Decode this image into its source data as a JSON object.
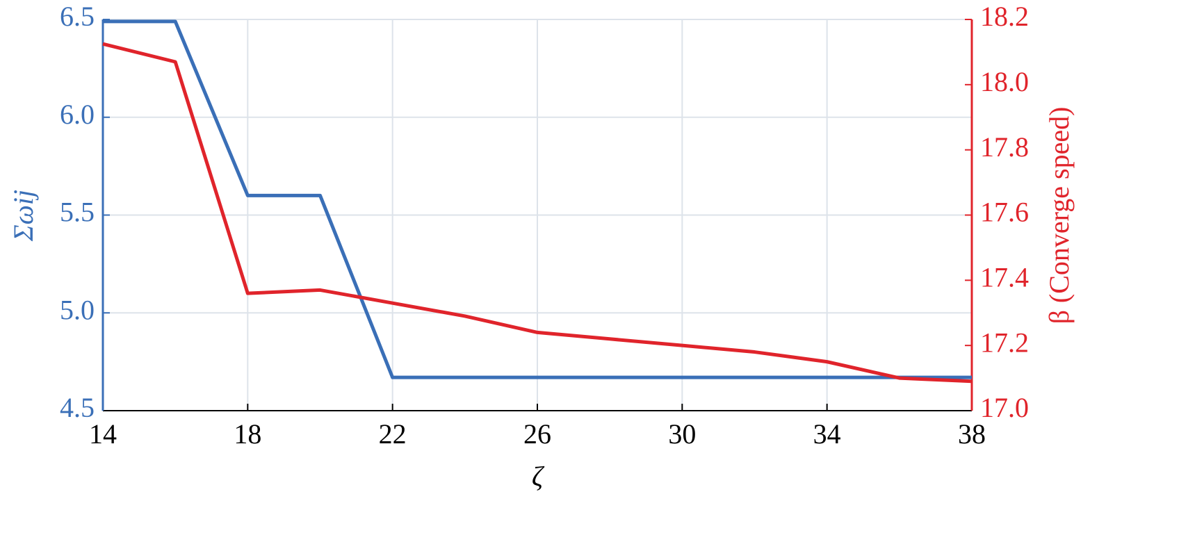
{
  "chart_data": {
    "type": "line",
    "x_label": "ζ",
    "y_label": "Σωij",
    "y2_label": "β (Converge speed)",
    "x": [
      14,
      16,
      18,
      20,
      22,
      24,
      26,
      28,
      30,
      32,
      34,
      36,
      38
    ],
    "series": [
      {
        "name": "Σωij",
        "color": "#3a6fb7",
        "axis": "y",
        "values": [
          6.49,
          6.49,
          5.6,
          5.6,
          4.67,
          4.67,
          4.67,
          4.67,
          4.67,
          4.67,
          4.67,
          4.67,
          4.67
        ]
      },
      {
        "name": "β (Converge speed)",
        "color": "#e0242b",
        "axis": "y2",
        "values": [
          18.125,
          18.07,
          17.36,
          17.37,
          17.33,
          17.29,
          17.24,
          17.22,
          17.2,
          17.18,
          17.15,
          17.1,
          17.09
        ]
      }
    ],
    "xlim": [
      14,
      38
    ],
    "xticks": [
      14,
      18,
      22,
      26,
      30,
      34,
      38
    ],
    "ylim": [
      4.5,
      6.5
    ],
    "yticks": [
      4.5,
      {
        "value": 5,
        "label": "5.0"
      },
      5.5,
      {
        "value": 6,
        "label": "6.0"
      },
      6.5
    ],
    "y2lim": [
      17,
      18.2
    ],
    "y2ticks": [
      {
        "value": 17,
        "label": "17.0"
      },
      17.2,
      17.4,
      17.6,
      17.8,
      {
        "value": 18,
        "label": "18.0"
      },
      18.2
    ],
    "grid": true
  }
}
